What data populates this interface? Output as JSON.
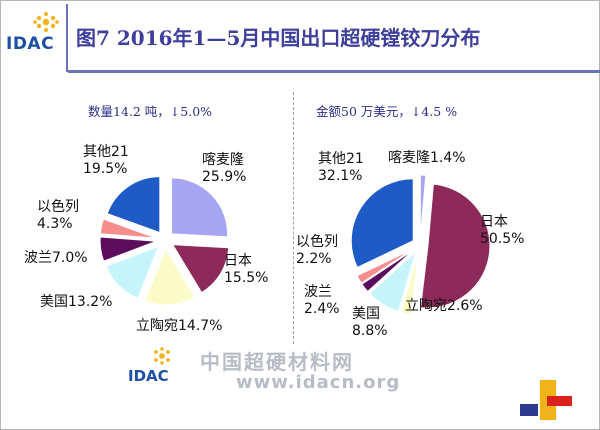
{
  "header": {
    "logo_text": "IDAC",
    "title": "图7 2016年1—5月中国出口超硬镗铰刀分布"
  },
  "left_panel": {
    "subtitle": "数量14.2 吨，↓5.0%"
  },
  "right_panel": {
    "subtitle": "金额50 万美元，↓4.5 %"
  },
  "footer": {
    "logo_text": "IDAC",
    "site_cn": "中国超硬材料网",
    "site_url": "www.idacn.org"
  },
  "chart_data": [
    {
      "type": "pie",
      "title": "数量14.2 吨，↓5.0%",
      "slices": [
        {
          "name": "喀麦隆",
          "value": 25.9,
          "label": "喀麦隆\n25.9%",
          "color": "#a5a5f2"
        },
        {
          "name": "日本",
          "value": 15.5,
          "label": "日本\n15.5%",
          "color": "#8e2a5a"
        },
        {
          "name": "立陶宛",
          "value": 14.7,
          "label": "立陶宛14.7%",
          "color": "#fbfbc8"
        },
        {
          "name": "美国",
          "value": 13.2,
          "label": "美国13.2%",
          "color": "#c6f4fb"
        },
        {
          "name": "波兰",
          "value": 7.0,
          "label": "波兰7.0%",
          "color": "#5c0c5c"
        },
        {
          "name": "以色列",
          "value": 4.3,
          "label": "以色列\n4.3%",
          "color": "#f58d8d"
        },
        {
          "name": "其他",
          "value": 19.5,
          "label": "其他21\n19.5%",
          "color": "#1e5bc6"
        }
      ]
    },
    {
      "type": "pie",
      "title": "金额50 万美元，↓4.5 %",
      "slices": [
        {
          "name": "喀麦隆",
          "value": 1.4,
          "label": "喀麦隆1.4%",
          "color": "#a5a5f2"
        },
        {
          "name": "日本",
          "value": 50.5,
          "label": "日本\n50.5%",
          "color": "#8e2a5a"
        },
        {
          "name": "立陶宛",
          "value": 2.6,
          "label": "立陶宛2.6%",
          "color": "#fbfbc8"
        },
        {
          "name": "美国",
          "value": 8.8,
          "label": "美国\n8.8%",
          "color": "#c6f4fb"
        },
        {
          "name": "波兰",
          "value": 2.4,
          "label": "波兰\n2.4%",
          "color": "#5c0c5c"
        },
        {
          "name": "以色列",
          "value": 2.2,
          "label": "以色列\n2.2%",
          "color": "#f58d8d"
        },
        {
          "name": "其他",
          "value": 32.1,
          "label": "其他21\n32.1%",
          "color": "#1e5bc6"
        }
      ]
    }
  ]
}
